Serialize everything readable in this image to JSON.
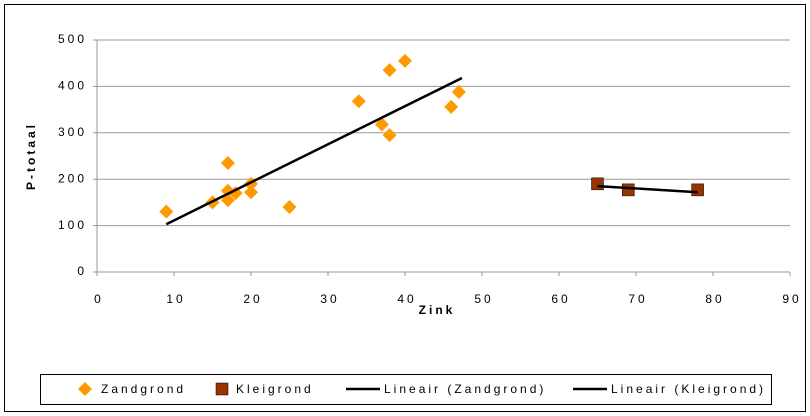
{
  "chart_data": {
    "type": "scatter",
    "x_label": "Zink",
    "y_label": "P-totaal",
    "xlim": [
      0,
      90
    ],
    "xticks": [
      0,
      10,
      20,
      30,
      40,
      50,
      60,
      70,
      80,
      90
    ],
    "ylim": [
      0,
      500
    ],
    "yticks": [
      0,
      100,
      200,
      300,
      400,
      500
    ],
    "grid": true,
    "legend": "bottom",
    "series": [
      {
        "name": "Zandgrond",
        "color": "#ff9900",
        "marker": "diamond",
        "x": [
          9,
          15,
          17,
          17,
          17,
          18,
          20,
          20,
          25,
          34,
          38,
          40,
          37,
          38,
          46,
          47
        ],
        "values": [
          130,
          150,
          235,
          175,
          155,
          170,
          190,
          172,
          140,
          368,
          435,
          455,
          318,
          295,
          356,
          388
        ]
      },
      {
        "name": "Kleigrond",
        "color": "#993300",
        "marker": "square",
        "x": [
          65,
          69,
          78
        ],
        "values": [
          190,
          177,
          177
        ]
      },
      {
        "name": "Lineair (Zandgrond)",
        "color": "#000000",
        "marker": "line",
        "x": [
          9,
          47.4
        ],
        "values": [
          103,
          418
        ]
      },
      {
        "name": "Lineair (Kleigrond)",
        "color": "#000000",
        "marker": "line",
        "x": [
          65,
          78
        ],
        "values": [
          185,
          172
        ]
      }
    ]
  }
}
